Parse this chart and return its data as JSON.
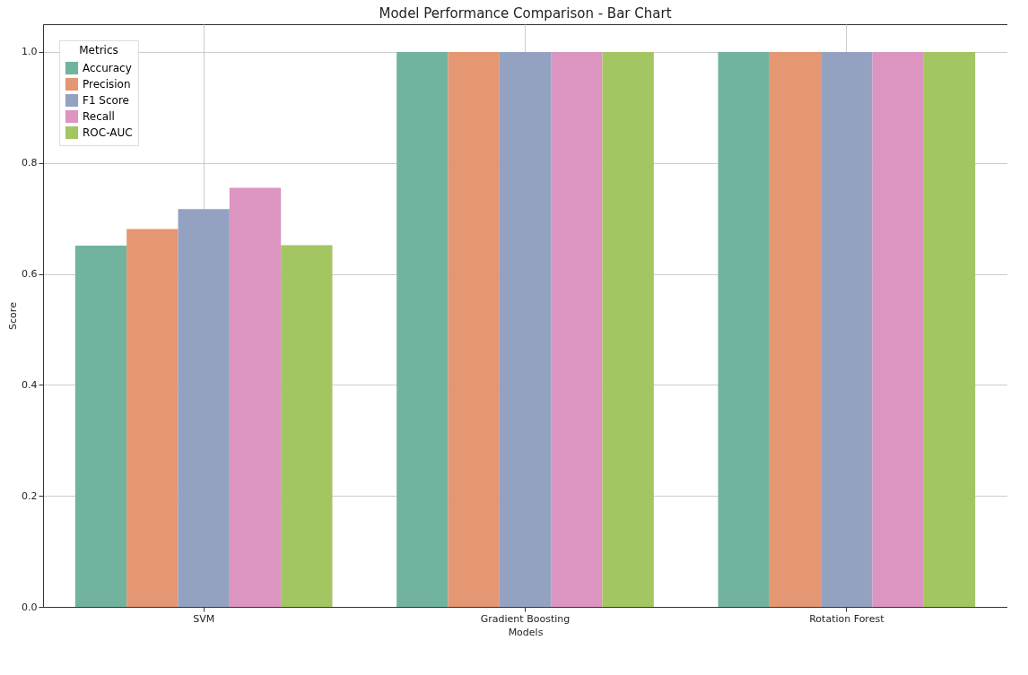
{
  "chart_data": {
    "type": "bar",
    "title": "Model Performance Comparison - Bar Chart",
    "xlabel": "Models",
    "ylabel": "Score",
    "legend_title": "Metrics",
    "categories": [
      "SVM",
      "Gradient Boosting",
      "Rotation Forest"
    ],
    "series": [
      {
        "name": "Accuracy",
        "color": "#72b3a0",
        "values": [
          0.651,
          1.0,
          1.0
        ]
      },
      {
        "name": "Precision",
        "color": "#e59672",
        "values": [
          0.681,
          1.0,
          1.0
        ]
      },
      {
        "name": "F1 Score",
        "color": "#94a2c2",
        "values": [
          0.717,
          1.0,
          1.0
        ]
      },
      {
        "name": "Recall",
        "color": "#db95c0",
        "values": [
          0.755,
          1.0,
          1.0
        ]
      },
      {
        "name": "ROC-AUC",
        "color": "#a3c663",
        "values": [
          0.652,
          1.0,
          1.0
        ]
      }
    ],
    "ylim": [
      0,
      1.05
    ],
    "yticks": [
      {
        "value": 0,
        "label": "0.0"
      },
      {
        "value": 0.2,
        "label": "0.2"
      },
      {
        "value": 0.4,
        "label": "0.4"
      },
      {
        "value": 0.6,
        "label": "0.6"
      },
      {
        "value": 0.8,
        "label": "0.8"
      },
      {
        "value": 1,
        "label": "1.0"
      }
    ],
    "grid": true,
    "legend": "top left"
  }
}
